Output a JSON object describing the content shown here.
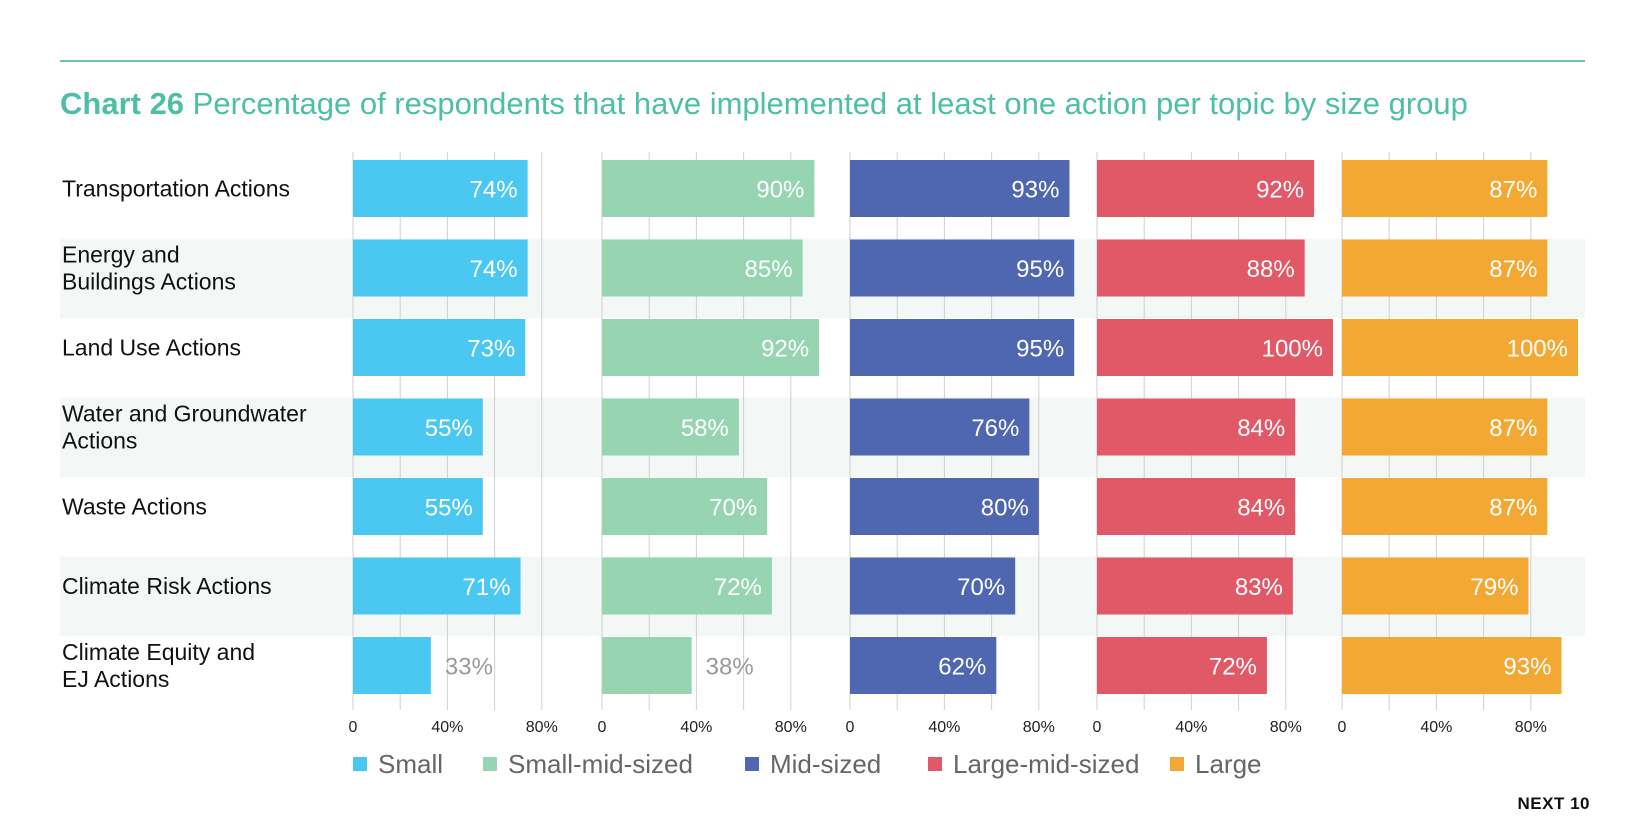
{
  "title": {
    "label": "Chart 26",
    "text": "Percentage of respondents that have implemented at least one action per topic by size group"
  },
  "footer": {
    "text": "NEXT 10"
  },
  "chart_data": {
    "type": "bar",
    "orientation": "horizontal",
    "layout": "small-multiples",
    "categories": [
      [
        "Transportation Actions"
      ],
      [
        "Energy and",
        "Buildings Actions"
      ],
      [
        "Land Use Actions"
      ],
      [
        "Water and Groundwater",
        "Actions"
      ],
      [
        "Waste Actions"
      ],
      [
        "Climate Risk Actions"
      ],
      [
        "Climate Equity and",
        "EJ Actions"
      ]
    ],
    "series": [
      {
        "name": "Small",
        "color": "#4bc8f2",
        "values": [
          74,
          74,
          73,
          55,
          55,
          71,
          33
        ]
      },
      {
        "name": "Small-mid-sized",
        "color": "#96d4b2",
        "values": [
          90,
          85,
          92,
          58,
          70,
          72,
          38
        ]
      },
      {
        "name": "Mid-sized",
        "color": "#4f66b0",
        "values": [
          93,
          95,
          95,
          76,
          80,
          70,
          62
        ]
      },
      {
        "name": "Large-mid-sized",
        "color": "#e15866",
        "values": [
          92,
          88,
          100,
          84,
          84,
          83,
          72
        ]
      },
      {
        "name": "Large",
        "color": "#f2a833",
        "values": [
          87,
          87,
          100,
          87,
          87,
          79,
          93
        ]
      }
    ],
    "value_suffix": "%",
    "xlim": [
      0,
      100
    ],
    "x_ticks": [
      0,
      20,
      40,
      60,
      80
    ],
    "x_tick_labels": [
      "0",
      "",
      "40%",
      "",
      "80%"
    ],
    "grid": true,
    "legend": "bottom",
    "colors": {
      "title": "#4dbfa6",
      "band": "#f3f8f6",
      "grid": "#cfcfcf",
      "inside_label": "#ffffff",
      "outside_label": "#9a9a9a"
    }
  }
}
